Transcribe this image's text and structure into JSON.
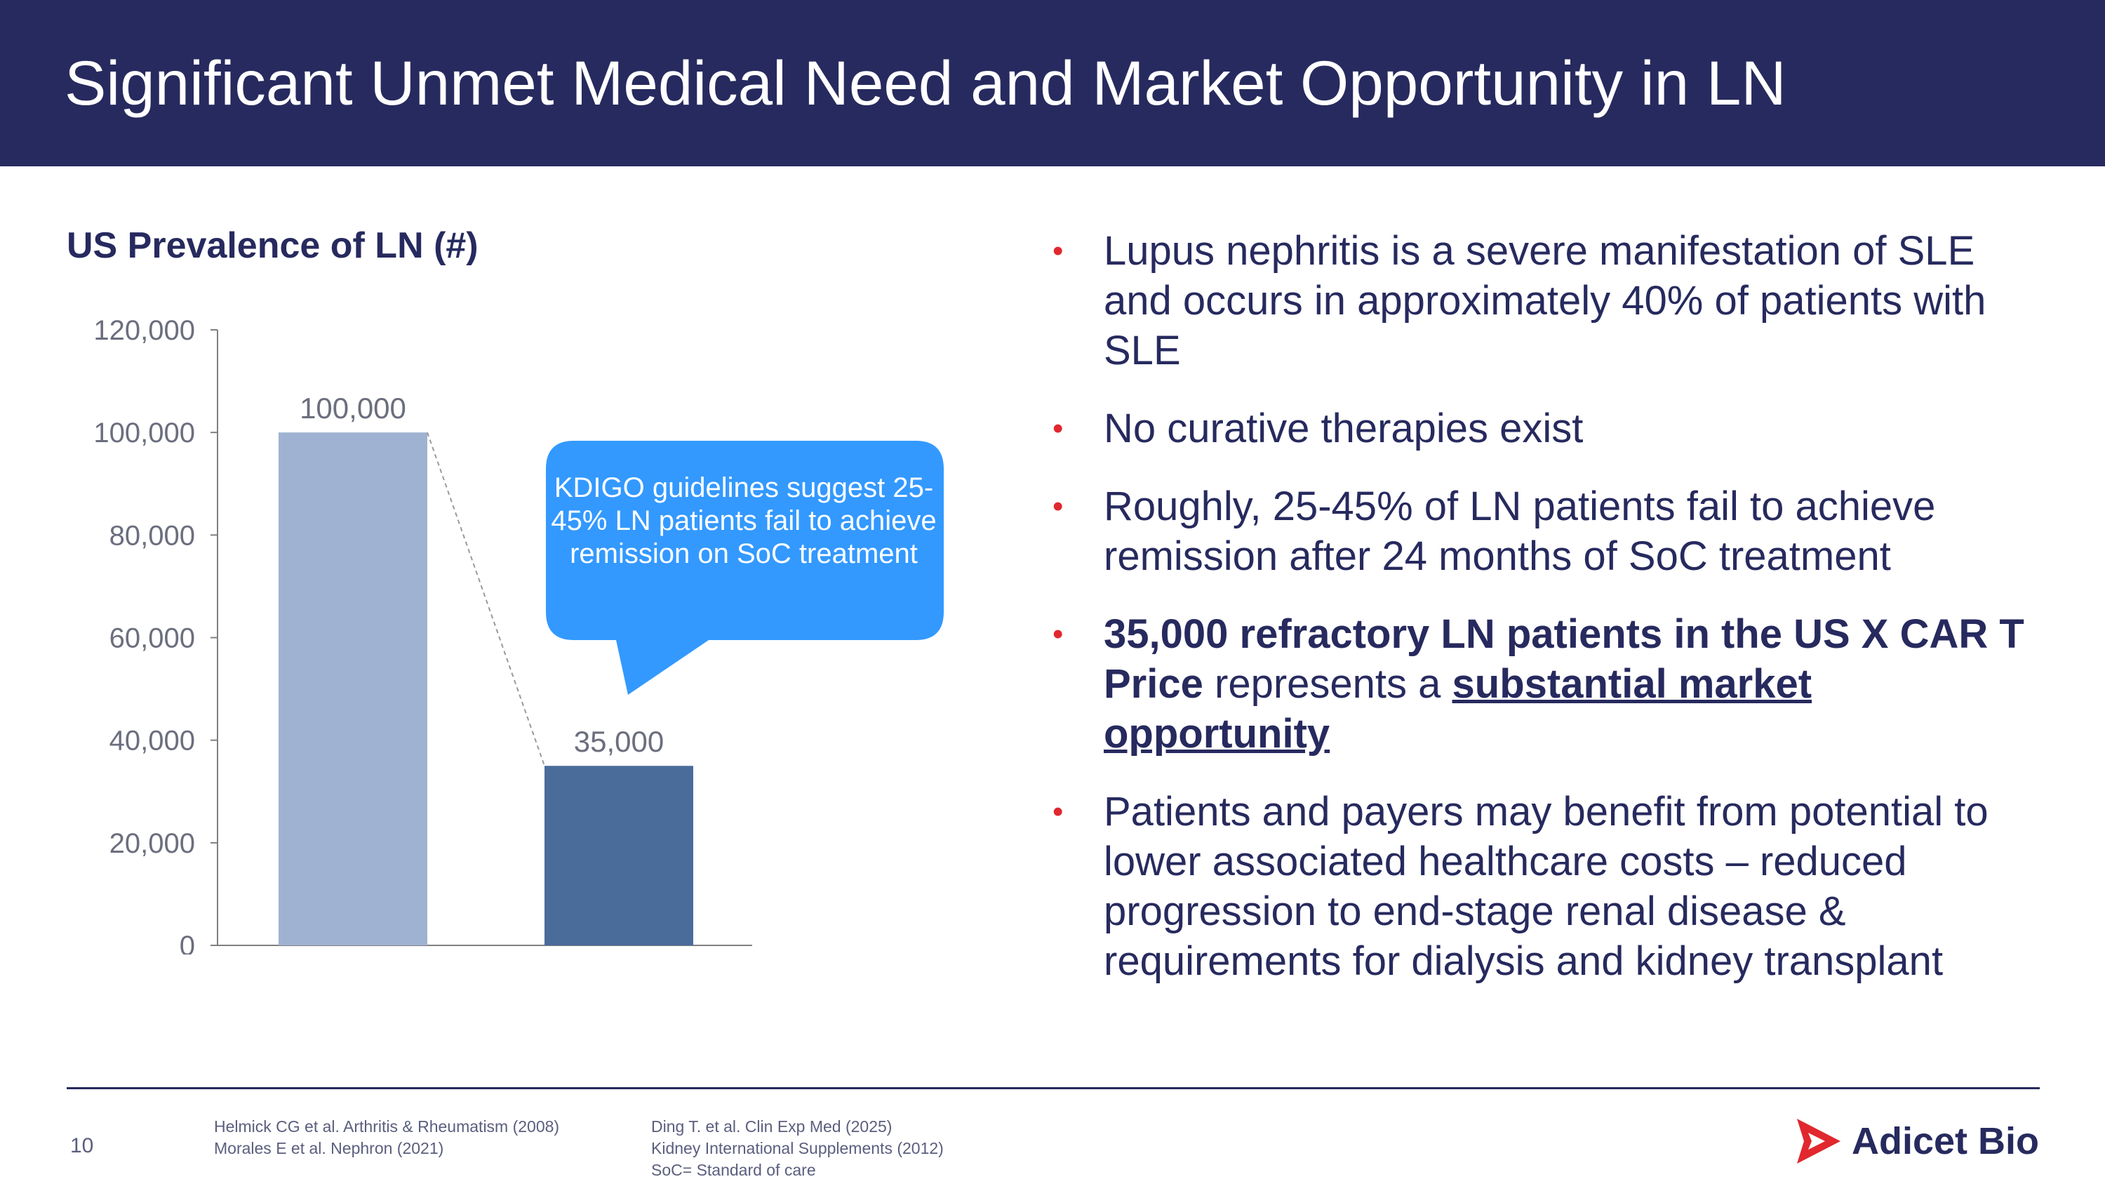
{
  "slide": {
    "title": "Significant Unmet Medical Need and Market Opportunity in LN",
    "page_number": "10"
  },
  "chart_heading": "US Prevalence of LN (#)",
  "colors": {
    "header": "#272a5e",
    "bar_1": "#9fb2d1",
    "bar_2": "#4a6c9b",
    "callout": "#3399ff",
    "bullet_dot": "#e0282e",
    "text": "#272a5e"
  },
  "chart_data": {
    "type": "bar",
    "title": "US Prevalence of LN (#)",
    "categories": [
      "",
      ""
    ],
    "values": [
      100000,
      35000
    ],
    "data_labels": [
      "100,000",
      "35,000"
    ],
    "ylim": [
      0,
      120000
    ],
    "yticks": [
      0,
      20000,
      40000,
      60000,
      80000,
      100000,
      120000
    ],
    "ytick_labels": [
      "0",
      "20,000",
      "40,000",
      "60,000",
      "80,000",
      "100,000",
      "120,000"
    ],
    "xlabel": "",
    "ylabel": "",
    "grid": false,
    "connector": "dashed line from top of bar 1 to top of bar 2"
  },
  "callout": {
    "text": "KDIGO guidelines suggest 25-45% LN patients fail to achieve remission on SoC treatment"
  },
  "bullets": [
    {
      "text": "Lupus nephritis is a severe manifestation of SLE and occurs in approximately 40% of patients with SLE"
    },
    {
      "text": "No curative therapies exist"
    },
    {
      "text": "Roughly, 25-45% of LN patients fail to achieve remission after 24 months of SoC treatment"
    },
    {
      "strong": "35,000 refractory LN patients in the US X CAR T Price",
      "middle": " represents a ",
      "emphasis": "substantial market opportunity"
    },
    {
      "text": "Patients and payers may benefit from potential to lower associated healthcare costs – reduced progression to end-stage renal disease & requirements for dialysis and kidney transplant"
    }
  ],
  "footnotes": {
    "left": [
      "Helmick CG et al. Arthritis & Rheumatism (2008)",
      "Morales E et al. Nephron (2021)"
    ],
    "right": [
      "Ding T. et al. Clin Exp Med (2025)",
      "Kidney International Supplements (2012)",
      "SoC= Standard of care"
    ]
  },
  "logo": {
    "text": "Adicet Bio",
    "icon": "adicet-logo-icon"
  }
}
